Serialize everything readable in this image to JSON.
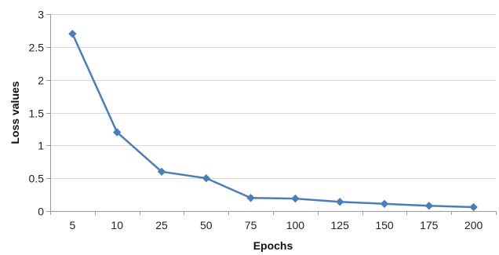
{
  "chart_data": {
    "type": "line",
    "title": "",
    "xlabel": "Epochs",
    "ylabel": "Loss values",
    "categories": [
      "5",
      "10",
      "25",
      "50",
      "75",
      "100",
      "125",
      "150",
      "175",
      "200"
    ],
    "series": [
      {
        "values": [
          2.7,
          1.2,
          0.6,
          0.5,
          0.2,
          0.19,
          0.14,
          0.11,
          0.08,
          0.06
        ],
        "color": "#4a7ebb",
        "marker": "diamond"
      }
    ],
    "ylim": [
      0,
      3
    ],
    "yticks": [
      "0",
      "0.5",
      "1",
      "1.5",
      "2",
      "2.5",
      "3"
    ],
    "grid": "horizontal",
    "legend": "none"
  },
  "colors": {
    "gridline": "#d9d9d9",
    "axis": "#9a9a9a"
  }
}
